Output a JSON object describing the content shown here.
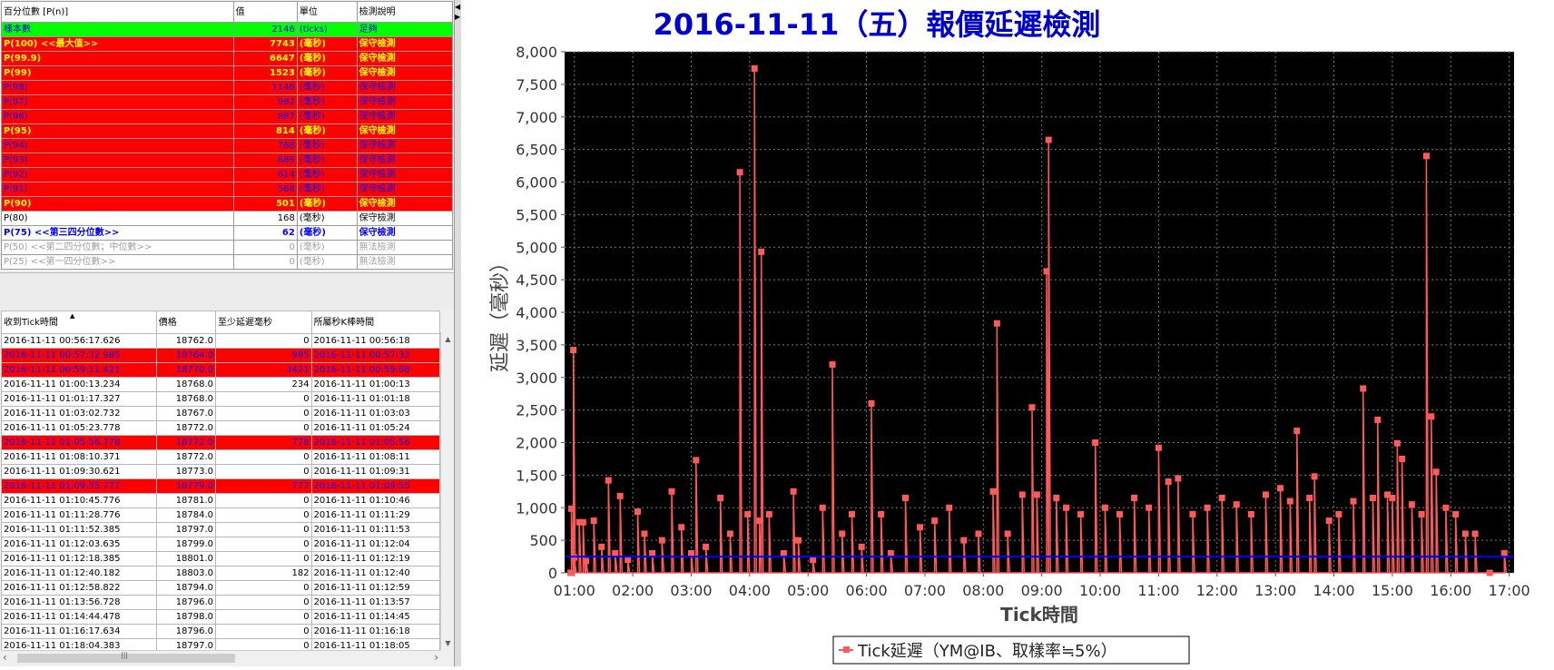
{
  "percentile_table": {
    "headers": [
      "百分位數 [P(n)]",
      "值",
      "單位",
      "檢測說明"
    ],
    "rows": [
      {
        "label": "樣本數",
        "value": "2146",
        "unit": "(ticks)",
        "desc": "足夠",
        "style": "green"
      },
      {
        "label": "P(100)  <<最大值>>",
        "value": "7743",
        "unit": "(毫秒)",
        "desc": "保守檢測",
        "style": "red-yellow"
      },
      {
        "label": "P(99.9)",
        "value": "6647",
        "unit": "(毫秒)",
        "desc": "保守檢測",
        "style": "red-yellow"
      },
      {
        "label": "P(99)",
        "value": "1523",
        "unit": "(毫秒)",
        "desc": "保守檢測",
        "style": "red-yellow"
      },
      {
        "label": "P(98)",
        "value": "1146",
        "unit": "(毫秒)",
        "desc": "保守檢測",
        "style": "red-blue"
      },
      {
        "label": "P(97)",
        "value": "982",
        "unit": "(毫秒)",
        "desc": "保守檢測",
        "style": "red-blue"
      },
      {
        "label": "P(96)",
        "value": "887",
        "unit": "(毫秒)",
        "desc": "保守檢測",
        "style": "red-blue"
      },
      {
        "label": "P(95)",
        "value": "814",
        "unit": "(毫秒)",
        "desc": "保守檢測",
        "style": "red-yellow"
      },
      {
        "label": "P(94)",
        "value": "768",
        "unit": "(毫秒)",
        "desc": "保守檢測",
        "style": "red-blue"
      },
      {
        "label": "P(93)",
        "value": "689",
        "unit": "(毫秒)",
        "desc": "保守檢測",
        "style": "red-blue"
      },
      {
        "label": "P(92)",
        "value": "614",
        "unit": "(毫秒)",
        "desc": "保守檢測",
        "style": "red-blue"
      },
      {
        "label": "P(91)",
        "value": "568",
        "unit": "(毫秒)",
        "desc": "保守檢測",
        "style": "red-blue"
      },
      {
        "label": "P(90)",
        "value": "501",
        "unit": "(毫秒)",
        "desc": "保守檢測",
        "style": "red-yellow"
      },
      {
        "label": "P(80)",
        "value": "168",
        "unit": "(毫秒)",
        "desc": "保守檢測",
        "style": "plain"
      },
      {
        "label": "P(75)  <<第三四分位數>>",
        "value": "62",
        "unit": "(毫秒)",
        "desc": "保守檢測",
        "style": "blue-bold"
      },
      {
        "label": "P(50)  <<第二四分位數；中位數>>",
        "value": "0",
        "unit": "(毫秒)",
        "desc": "無法檢測",
        "style": "grey"
      },
      {
        "label": "P(25)  <<第一四分位數>>",
        "value": "0",
        "unit": "(毫秒)",
        "desc": "無法檢測",
        "style": "grey"
      }
    ]
  },
  "tick_table": {
    "headers": [
      "收到Tick時間",
      "價格",
      "至少延遲毫秒",
      "所屬秒K棒時間"
    ],
    "sort_indicator": "▲",
    "rows": [
      {
        "time": "2016-11-11 00:56:17.626",
        "price": "18762.0",
        "delay": "0",
        "bar": "2016-11-11 00:56:18",
        "hl": false
      },
      {
        "time": "2016-11-11 00:57:32.985",
        "price": "18764.0",
        "delay": "985",
        "bar": "2016-11-11 00:57:32",
        "hl": true
      },
      {
        "time": "2016-11-11 00:59:11.421",
        "price": "18770.0",
        "delay": "3421",
        "bar": "2016-11-11 00:59:08",
        "hl": true
      },
      {
        "time": "2016-11-11 01:00:13.234",
        "price": "18768.0",
        "delay": "234",
        "bar": "2016-11-11 01:00:13",
        "hl": false
      },
      {
        "time": "2016-11-11 01:01:17.327",
        "price": "18768.0",
        "delay": "0",
        "bar": "2016-11-11 01:01:18",
        "hl": false
      },
      {
        "time": "2016-11-11 01:03:02.732",
        "price": "18767.0",
        "delay": "0",
        "bar": "2016-11-11 01:03:03",
        "hl": false
      },
      {
        "time": "2016-11-11 01:05:23.778",
        "price": "18772.0",
        "delay": "0",
        "bar": "2016-11-11 01:05:24",
        "hl": false
      },
      {
        "time": "2016-11-11 01:05:56.778",
        "price": "18772.0",
        "delay": "778",
        "bar": "2016-11-11 01:05:56",
        "hl": true
      },
      {
        "time": "2016-11-11 01:08:10.371",
        "price": "18772.0",
        "delay": "0",
        "bar": "2016-11-11 01:08:11",
        "hl": false
      },
      {
        "time": "2016-11-11 01:09:30.621",
        "price": "18773.0",
        "delay": "0",
        "bar": "2016-11-11 01:09:31",
        "hl": false
      },
      {
        "time": "2016-11-11 01:09:55.777",
        "price": "18779.0",
        "delay": "777",
        "bar": "2016-11-11 01:09:55",
        "hl": true
      },
      {
        "time": "2016-11-11 01:10:45.776",
        "price": "18781.0",
        "delay": "0",
        "bar": "2016-11-11 01:10:46",
        "hl": false
      },
      {
        "time": "2016-11-11 01:11:28.776",
        "price": "18784.0",
        "delay": "0",
        "bar": "2016-11-11 01:11:29",
        "hl": false
      },
      {
        "time": "2016-11-11 01:11:52.385",
        "price": "18797.0",
        "delay": "0",
        "bar": "2016-11-11 01:11:53",
        "hl": false
      },
      {
        "time": "2016-11-11 01:12:03.635",
        "price": "18799.0",
        "delay": "0",
        "bar": "2016-11-11 01:12:04",
        "hl": false
      },
      {
        "time": "2016-11-11 01:12:18.385",
        "price": "18801.0",
        "delay": "0",
        "bar": "2016-11-11 01:12:19",
        "hl": false
      },
      {
        "time": "2016-11-11 01:12:40.182",
        "price": "18803.0",
        "delay": "182",
        "bar": "2016-11-11 01:12:40",
        "hl": false
      },
      {
        "time": "2016-11-11 01:12:58.822",
        "price": "18794.0",
        "delay": "0",
        "bar": "2016-11-11 01:12:59",
        "hl": false
      },
      {
        "time": "2016-11-11 01:13:56.728",
        "price": "18796.0",
        "delay": "0",
        "bar": "2016-11-11 01:13:57",
        "hl": false
      },
      {
        "time": "2016-11-11 01:14:44.478",
        "price": "18798.0",
        "delay": "0",
        "bar": "2016-11-11 01:14:45",
        "hl": false
      },
      {
        "time": "2016-11-11 01:16:17.634",
        "price": "18796.0",
        "delay": "0",
        "bar": "2016-11-11 01:16:18",
        "hl": false
      },
      {
        "time": "2016-11-11 01:18:04.383",
        "price": "18797.0",
        "delay": "0",
        "bar": "2016-11-11 01:18:05",
        "hl": false
      }
    ]
  },
  "scrollbar": {
    "up": "▲",
    "down": "▼",
    "left": "‹",
    "right": "›",
    "grip": "|||"
  },
  "splitter": {
    "arrow_up": "◀",
    "arrow_down": "▶"
  },
  "colors": {
    "red": "#ff0000",
    "green": "#00ff00",
    "yellow": "#ffff00",
    "blue": "#0000ff",
    "grey": "#a0a0a0",
    "title_blue": "#0000cc",
    "plot_bg": "#000000",
    "series": "#ff5a5a",
    "median_line": "#0000ff"
  },
  "chart_data": {
    "type": "line",
    "title": "2016-11-11（五）報價延遲檢測",
    "xlabel": "Tick時間",
    "ylabel": "延遲（毫秒）",
    "ylim": [
      0,
      8000
    ],
    "yticks": [
      0,
      500,
      1000,
      1500,
      2000,
      2500,
      3000,
      3500,
      4000,
      4500,
      5000,
      5500,
      6000,
      6500,
      7000,
      7500,
      8000
    ],
    "xlim": [
      "00:50",
      "17:05"
    ],
    "xticks": [
      "01:00",
      "02:00",
      "03:00",
      "04:00",
      "05:00",
      "06:00",
      "07:00",
      "08:00",
      "09:00",
      "10:00",
      "11:00",
      "12:00",
      "13:00",
      "14:00",
      "15:00",
      "16:00",
      "17:00"
    ],
    "grid": true,
    "legend_position": "bottom-center",
    "series": [
      {
        "name": "Tick延遲（YM@IB、取樣率≒5%）",
        "points": [
          [
            "00:56",
            0
          ],
          [
            "00:57",
            985
          ],
          [
            "00:59",
            3421
          ],
          [
            "01:00",
            234
          ],
          [
            "01:05",
            778
          ],
          [
            "01:09",
            777
          ],
          [
            "01:12",
            182
          ],
          [
            "01:20",
            800
          ],
          [
            "01:28",
            400
          ],
          [
            "01:35",
            1420
          ],
          [
            "01:42",
            300
          ],
          [
            "01:47",
            1180
          ],
          [
            "01:55",
            200
          ],
          [
            "02:05",
            940
          ],
          [
            "02:12",
            600
          ],
          [
            "02:20",
            300
          ],
          [
            "02:30",
            500
          ],
          [
            "02:40",
            1250
          ],
          [
            "02:50",
            700
          ],
          [
            "03:00",
            300
          ],
          [
            "03:05",
            1730
          ],
          [
            "03:15",
            400
          ],
          [
            "03:30",
            1150
          ],
          [
            "03:40",
            600
          ],
          [
            "03:50",
            6150
          ],
          [
            "03:58",
            900
          ],
          [
            "04:05",
            7743
          ],
          [
            "04:10",
            800
          ],
          [
            "04:12",
            4930
          ],
          [
            "04:20",
            900
          ],
          [
            "04:35",
            300
          ],
          [
            "04:45",
            1250
          ],
          [
            "04:50",
            500
          ],
          [
            "05:05",
            200
          ],
          [
            "05:15",
            1000
          ],
          [
            "05:25",
            3200
          ],
          [
            "05:35",
            600
          ],
          [
            "05:45",
            900
          ],
          [
            "05:55",
            400
          ],
          [
            "06:05",
            2600
          ],
          [
            "06:15",
            900
          ],
          [
            "06:25",
            300
          ],
          [
            "06:40",
            1150
          ],
          [
            "06:55",
            700
          ],
          [
            "07:10",
            800
          ],
          [
            "07:25",
            1000
          ],
          [
            "07:40",
            500
          ],
          [
            "07:55",
            600
          ],
          [
            "08:10",
            1250
          ],
          [
            "08:14",
            3830
          ],
          [
            "08:25",
            600
          ],
          [
            "08:40",
            1200
          ],
          [
            "08:50",
            2540
          ],
          [
            "08:55",
            1200
          ],
          [
            "09:05",
            4630
          ],
          [
            "09:07",
            6647
          ],
          [
            "09:15",
            1150
          ],
          [
            "09:25",
            1000
          ],
          [
            "09:40",
            900
          ],
          [
            "09:55",
            2000
          ],
          [
            "10:05",
            1000
          ],
          [
            "10:20",
            900
          ],
          [
            "10:35",
            1150
          ],
          [
            "10:50",
            1000
          ],
          [
            "11:00",
            1920
          ],
          [
            "11:10",
            1400
          ],
          [
            "11:20",
            1450
          ],
          [
            "11:35",
            900
          ],
          [
            "11:50",
            1000
          ],
          [
            "12:05",
            1150
          ],
          [
            "12:20",
            1050
          ],
          [
            "12:35",
            900
          ],
          [
            "12:50",
            1200
          ],
          [
            "13:05",
            1300
          ],
          [
            "13:15",
            1100
          ],
          [
            "13:22",
            2180
          ],
          [
            "13:35",
            1150
          ],
          [
            "13:40",
            1480
          ],
          [
            "13:55",
            800
          ],
          [
            "14:05",
            900
          ],
          [
            "14:20",
            1100
          ],
          [
            "14:30",
            2830
          ],
          [
            "14:40",
            1150
          ],
          [
            "14:45",
            2350
          ],
          [
            "14:55",
            1200
          ],
          [
            "15:00",
            1150
          ],
          [
            "15:05",
            1990
          ],
          [
            "15:10",
            1750
          ],
          [
            "15:20",
            1050
          ],
          [
            "15:30",
            900
          ],
          [
            "15:35",
            6400
          ],
          [
            "15:40",
            2400
          ],
          [
            "15:45",
            1550
          ],
          [
            "15:55",
            1000
          ],
          [
            "16:05",
            900
          ],
          [
            "16:15",
            600
          ],
          [
            "16:25",
            600
          ],
          [
            "16:40",
            0
          ],
          [
            "16:55",
            300
          ]
        ]
      },
      {
        "name": "",
        "constant": 250
      }
    ]
  }
}
